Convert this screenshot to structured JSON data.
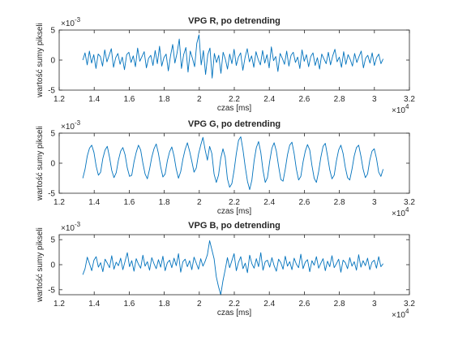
{
  "chart_data": [
    {
      "type": "line",
      "title": "VPG R, po detrending",
      "xlabel": "czas [ms]",
      "ylabel": "wartość sumy pikseli",
      "xlim": [
        1.2,
        3.2
      ],
      "ylim": [
        -5,
        5
      ],
      "x_scale_note": "×10",
      "x_scale_exp": "4",
      "y_scale_note": "×10",
      "y_scale_exp": "-3",
      "x_ticks": [
        "1.2",
        "1.4",
        "1.6",
        "1.8",
        "2",
        "2.2",
        "2.4",
        "2.6",
        "2.8",
        "3",
        "3.2"
      ],
      "y_ticks": [
        "-5",
        "0",
        "5"
      ],
      "series": [
        {
          "color": "#0072BD",
          "x_start": 1.335,
          "x_end": 3.05,
          "values": [
            0.0,
            1.2,
            -0.8,
            1.5,
            -0.5,
            0.9,
            -1.4,
            1.0,
            0.6,
            -1.0,
            1.7,
            -0.3,
            0.8,
            1.9,
            -1.2,
            0.4,
            1.1,
            -0.7,
            0.5,
            -1.6,
            0.9,
            1.3,
            -0.4,
            0.7,
            -1.1,
            2.0,
            -0.2,
            0.6,
            1.4,
            -1.3,
            0.3,
            0.8,
            -0.9,
            1.6,
            -0.6,
            2.3,
            -1.0,
            0.4,
            1.0,
            -1.8,
            0.7,
            2.6,
            -0.5,
            1.2,
            3.5,
            -1.4,
            0.9,
            2.1,
            -2.0,
            1.5,
            0.3,
            -1.1,
            2.8,
            4.2,
            -0.8,
            1.6,
            -2.4,
            0.9,
            2.0,
            -3.0,
            1.1,
            -0.4,
            0.8,
            -2.2,
            1.3,
            0.2,
            -1.5,
            1.0,
            -0.6,
            1.8,
            -0.9,
            0.5,
            1.2,
            -1.7,
            0.4,
            1.9,
            -0.3,
            0.7,
            -1.2,
            1.4,
            0.1,
            -0.8,
            1.6,
            -0.5,
            0.9,
            -1.3,
            2.2,
            -0.1,
            0.6,
            -1.9,
            1.1,
            0.3,
            -0.7,
            1.5,
            -1.0,
            0.8,
            1.3,
            -0.4,
            0.5,
            -1.4,
            1.7,
            -0.2,
            0.9,
            -1.1,
            0.6,
            1.2,
            -0.9,
            0.4,
            -1.5,
            1.0,
            0.2,
            -0.6,
            1.3,
            -0.8,
            0.7,
            1.8,
            -0.3,
            0.5,
            -1.2,
            1.4,
            -0.7,
            0.9,
            0.1,
            -1.0,
            1.1,
            -0.4,
            0.6,
            1.5,
            -1.3,
            0.3,
            0.8,
            -0.5,
            1.2,
            -0.9,
            0.4,
            1.0,
            -0.6,
            0.2
          ]
        }
      ]
    },
    {
      "type": "line",
      "title": "VPG G, po detrending",
      "xlabel": "czas [ms]",
      "ylabel": "wartość sumy pikseli",
      "xlim": [
        1.2,
        3.2
      ],
      "ylim": [
        -5,
        5
      ],
      "x_scale_note": "×10",
      "x_scale_exp": "4",
      "y_scale_note": "×10",
      "y_scale_exp": "-3",
      "x_ticks": [
        "1.2",
        "1.4",
        "1.6",
        "1.8",
        "2",
        "2.2",
        "2.4",
        "2.6",
        "2.8",
        "3",
        "3.2"
      ],
      "y_ticks": [
        "-5",
        "0",
        "5"
      ],
      "series": [
        {
          "color": "#0072BD",
          "x_start": 1.335,
          "x_end": 3.05,
          "values": [
            -2.5,
            -1.0,
            1.2,
            2.5,
            3.0,
            1.8,
            -0.5,
            -2.0,
            -1.5,
            0.8,
            2.2,
            2.8,
            1.0,
            -1.2,
            -2.4,
            -1.6,
            0.5,
            2.0,
            2.6,
            1.4,
            -0.8,
            -2.2,
            -2.0,
            0.2,
            1.8,
            3.0,
            2.2,
            0.0,
            -1.8,
            -2.6,
            -1.0,
            1.0,
            2.4,
            3.2,
            1.6,
            -0.6,
            -2.3,
            -1.8,
            0.4,
            1.9,
            2.7,
            1.2,
            -1.0,
            -2.5,
            -1.4,
            0.7,
            2.3,
            3.4,
            2.0,
            0.3,
            -1.5,
            -0.8,
            1.5,
            3.0,
            4.3,
            2.2,
            0.5,
            2.8,
            1.6,
            -1.8,
            -3.2,
            -2.0,
            0.8,
            2.4,
            1.0,
            -2.6,
            -4.0,
            -3.4,
            -1.2,
            1.6,
            3.8,
            4.4,
            2.2,
            -0.6,
            -3.0,
            -4.4,
            -2.8,
            0.4,
            2.6,
            3.6,
            1.8,
            -1.2,
            -3.2,
            -2.4,
            0.3,
            2.5,
            3.4,
            2.0,
            -0.5,
            -2.7,
            -3.0,
            -1.0,
            1.4,
            3.0,
            3.5,
            1.6,
            -1.0,
            -2.8,
            -2.2,
            0.2,
            2.0,
            3.1,
            2.2,
            -0.4,
            -2.5,
            -3.2,
            -1.4,
            1.0,
            2.8,
            3.3,
            1.2,
            -1.1,
            -2.6,
            -2.0,
            0.4,
            2.2,
            3.0,
            1.6,
            -0.7,
            -2.4,
            -2.8,
            -1.0,
            1.2,
            2.6,
            3.0,
            1.2,
            -1.0,
            -2.4,
            -1.8,
            0.5,
            2.0,
            2.4,
            0.8,
            -1.5,
            -2.2,
            -1.0
          ]
        }
      ]
    },
    {
      "type": "line",
      "title": "VPG B, po detrending",
      "xlabel": "czas [ms]",
      "ylabel": "wartość sumy pikseli",
      "xlim": [
        1.2,
        3.2
      ],
      "ylim": [
        -6,
        6
      ],
      "x_scale_note": "×10",
      "x_scale_exp": "4",
      "y_scale_note": "×10",
      "y_scale_exp": "-3",
      "x_ticks": [
        "1.2",
        "1.4",
        "1.6",
        "1.8",
        "2",
        "2.2",
        "2.4",
        "2.6",
        "2.8",
        "3",
        "3.2"
      ],
      "y_ticks": [
        "-5",
        "0",
        "5"
      ],
      "series": [
        {
          "color": "#0072BD",
          "x_start": 1.335,
          "x_end": 3.05,
          "values": [
            -2.0,
            -0.8,
            1.5,
            0.2,
            -1.2,
            0.9,
            1.6,
            -0.5,
            0.4,
            -1.4,
            1.1,
            0.3,
            -0.6,
            1.8,
            -0.9,
            0.5,
            -0.2,
            1.3,
            -1.0,
            0.7,
            2.4,
            -0.4,
            0.8,
            -1.3,
            1.2,
            0.1,
            -0.7,
            1.9,
            -0.3,
            0.6,
            -1.1,
            1.4,
            0.2,
            -0.8,
            1.0,
            -0.5,
            1.7,
            -1.2,
            0.4,
            0.9,
            -0.6,
            1.3,
            -0.2,
            2.2,
            -1.5,
            0.6,
            1.1,
            -0.4,
            0.8,
            -1.0,
            1.5,
            0.3,
            -0.9,
            1.2,
            -0.3,
            0.7,
            2.0,
            4.8,
            3.0,
            1.2,
            -2.4,
            -4.4,
            -6.0,
            -3.2,
            -1.0,
            1.4,
            -0.6,
            0.8,
            2.2,
            -1.2,
            0.5,
            1.6,
            -0.8,
            0.3,
            -1.6,
            1.9,
            0.2,
            -0.7,
            1.2,
            -0.4,
            2.4,
            -1.1,
            0.6,
            0.9,
            -0.5,
            1.4,
            -0.2,
            -1.3,
            1.1,
            0.4,
            -0.9,
            1.7,
            -0.3,
            0.6,
            -1.0,
            1.3,
            0.1,
            -0.6,
            2.1,
            -0.8,
            0.5,
            1.0,
            -1.4,
            0.8,
            -0.1,
            1.6,
            -0.7,
            0.3,
            1.2,
            -1.2,
            0.7,
            -0.4,
            1.8,
            -0.6,
            0.2,
            1.1,
            -1.5,
            0.9,
            0.4,
            -0.8,
            1.4,
            -0.3,
            0.6,
            -1.1,
            2.0,
            -0.5,
            0.8,
            -0.2,
            1.3,
            -1.0,
            0.5,
            0.9,
            -0.7,
            1.6,
            -0.4,
            0.2
          ]
        }
      ]
    }
  ]
}
